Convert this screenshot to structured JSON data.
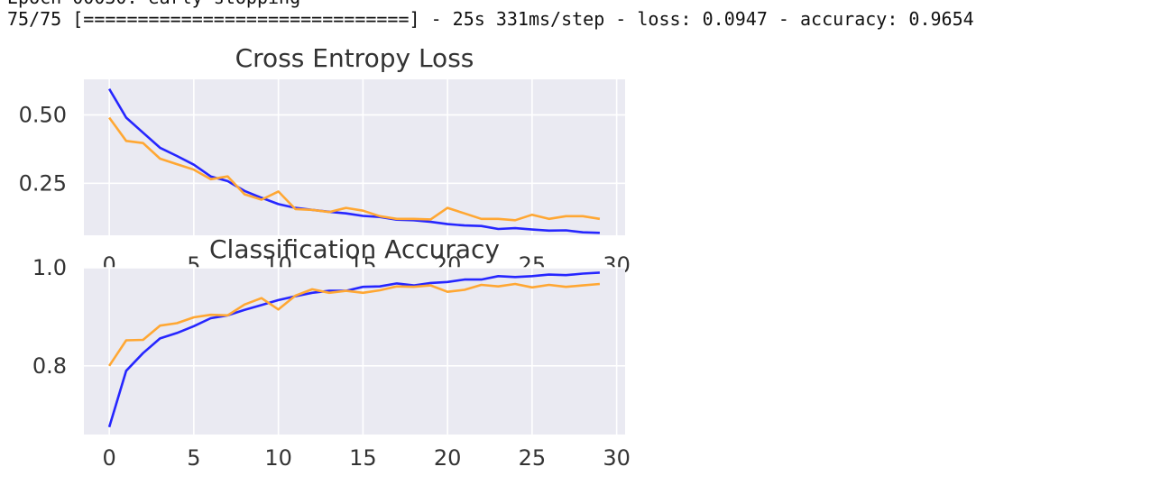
{
  "console": {
    "line1": "Epoch 00030: early stopping",
    "line2": "75/75 [==============================] - 25s 331ms/step - loss: 0.0947 - accuracy: 0.9654"
  },
  "colors": {
    "train": "#2626ff",
    "test": "#ffa733",
    "plot_bg": "#eaeaf2",
    "grid": "#ffffff",
    "text": "#333333"
  },
  "chart_data": [
    {
      "type": "line",
      "title": "Cross Entropy Loss",
      "x": [
        0,
        1,
        2,
        3,
        4,
        5,
        6,
        7,
        8,
        9,
        10,
        11,
        12,
        13,
        14,
        15,
        16,
        17,
        18,
        19,
        20,
        21,
        22,
        23,
        24,
        25,
        26,
        27,
        28,
        29
      ],
      "xticks": [
        "0",
        "5",
        "10",
        "15",
        "20",
        "25",
        "30"
      ],
      "yticks": [
        "0.25",
        "0.50"
      ],
      "xlim": [
        -1.5,
        30.5
      ],
      "ylim": [
        0.06,
        0.63
      ],
      "grid": true,
      "series": [
        {
          "values": [
            0.595,
            0.49,
            0.435,
            0.38,
            0.35,
            0.318,
            0.275,
            0.258,
            0.222,
            0.197,
            0.174,
            0.16,
            0.153,
            0.146,
            0.14,
            0.131,
            0.127,
            0.117,
            0.115,
            0.109,
            0.101,
            0.096,
            0.094,
            0.083,
            0.086,
            0.081,
            0.077,
            0.078,
            0.071,
            0.069
          ]
        },
        {
          "values": [
            0.49,
            0.405,
            0.397,
            0.34,
            0.32,
            0.3,
            0.265,
            0.275,
            0.21,
            0.19,
            0.22,
            0.156,
            0.153,
            0.145,
            0.16,
            0.15,
            0.13,
            0.12,
            0.12,
            0.118,
            0.16,
            0.14,
            0.12,
            0.12,
            0.115,
            0.135,
            0.12,
            0.13,
            0.13,
            0.12
          ]
        }
      ]
    },
    {
      "type": "line",
      "title": "Classification Accuracy",
      "x": [
        0,
        1,
        2,
        3,
        4,
        5,
        6,
        7,
        8,
        9,
        10,
        11,
        12,
        13,
        14,
        15,
        16,
        17,
        18,
        19,
        20,
        21,
        22,
        23,
        24,
        25,
        26,
        27,
        28,
        29
      ],
      "xticks": [
        "0",
        "5",
        "10",
        "15",
        "20",
        "25",
        "30"
      ],
      "yticks": [
        "0.8",
        "1.0"
      ],
      "xlim": [
        -1.5,
        30.5
      ],
      "ylim": [
        0.66,
        1.0
      ],
      "grid": true,
      "series": [
        {
          "values": [
            0.675,
            0.79,
            0.826,
            0.856,
            0.867,
            0.881,
            0.897,
            0.903,
            0.914,
            0.924,
            0.934,
            0.942,
            0.949,
            0.953,
            0.953,
            0.961,
            0.962,
            0.968,
            0.964,
            0.969,
            0.971,
            0.976,
            0.976,
            0.983,
            0.981,
            0.983,
            0.986,
            0.985,
            0.988,
            0.99
          ]
        },
        {
          "values": [
            0.8,
            0.852,
            0.853,
            0.882,
            0.887,
            0.899,
            0.904,
            0.903,
            0.925,
            0.938,
            0.915,
            0.943,
            0.956,
            0.949,
            0.953,
            0.949,
            0.954,
            0.962,
            0.961,
            0.964,
            0.951,
            0.955,
            0.965,
            0.962,
            0.967,
            0.96,
            0.965,
            0.961,
            0.964,
            0.967
          ]
        }
      ]
    }
  ]
}
